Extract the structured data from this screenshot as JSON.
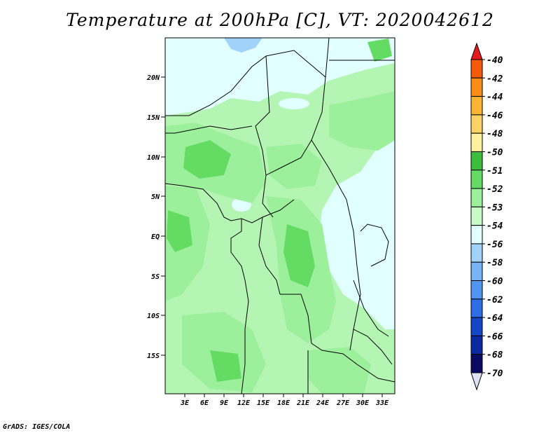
{
  "title": "Temperature at 200hPa [C], VT: 2020042612",
  "footer": "GrADS: IGES/COLA",
  "lat_labels": [
    "20N",
    "15N",
    "10N",
    "5N",
    "EQ",
    "5S",
    "10S",
    "15S"
  ],
  "lon_labels": [
    "3E",
    "6E",
    "9E",
    "12E",
    "15E",
    "18E",
    "21E",
    "24E",
    "27E",
    "30E",
    "33E"
  ],
  "colorbar": {
    "levels": [
      {
        "label": "-40",
        "color": "#f03c00"
      },
      {
        "label": "-42",
        "color": "#f55a0a"
      },
      {
        "label": "-44",
        "color": "#f88c14"
      },
      {
        "label": "-46",
        "color": "#fab432"
      },
      {
        "label": "-48",
        "color": "#fcd264"
      },
      {
        "label": "-50",
        "color": "#fff0a0"
      },
      {
        "label": "-51",
        "color": "#3cbe3c"
      },
      {
        "label": "-52",
        "color": "#64dc64"
      },
      {
        "label": "-53",
        "color": "#9cf09c"
      },
      {
        "label": "-54",
        "color": "#c8fac8"
      },
      {
        "label": "-56",
        "color": "#e1ffff"
      },
      {
        "label": "-58",
        "color": "#a0d2fa"
      },
      {
        "label": "-60",
        "color": "#78b4f5"
      },
      {
        "label": "-62",
        "color": "#5096f0"
      },
      {
        "label": "-64",
        "color": "#2d6ee6"
      },
      {
        "label": "-66",
        "color": "#1446c8"
      },
      {
        "label": "-68",
        "color": "#0a28a0"
      },
      {
        "label": "-70",
        "color": "#0a0a64"
      }
    ],
    "top_arrow_color": "#e41a1c",
    "bottom_arrow_color": "#e1e1f5"
  }
}
